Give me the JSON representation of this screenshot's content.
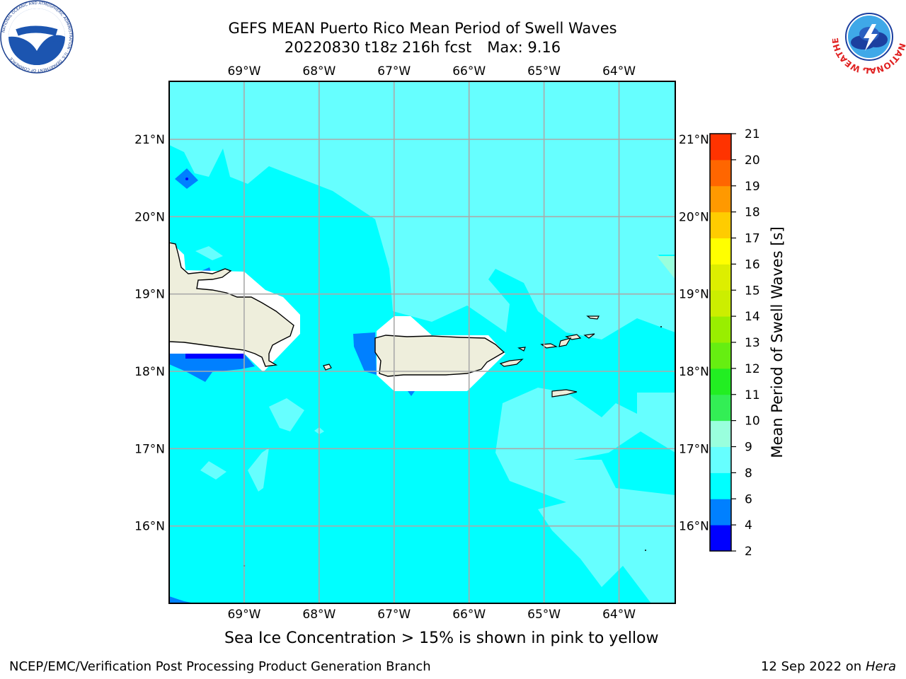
{
  "title": {
    "line1": "GEFS MEAN Puerto Rico Mean Period of Swell Waves",
    "date_run": "20220830 t18z 216h fcst",
    "max_label": "Max: 9.16"
  },
  "map": {
    "lon_labels": [
      "69°W",
      "68°W",
      "67°W",
      "66°W",
      "65°W",
      "64°W"
    ],
    "lat_labels": [
      "21°N",
      "20°N",
      "19°N",
      "18°N",
      "17°N",
      "16°N"
    ],
    "lon_values": [
      -69,
      -68,
      -67,
      -66,
      -65,
      -64
    ],
    "lat_values": [
      21,
      20,
      19,
      18,
      17,
      16
    ],
    "lon_range": [
      -70.0,
      -63.25
    ],
    "lat_range": [
      15.0,
      21.75
    ],
    "grid": true,
    "ocean_color": "#00ffff",
    "longer_period_color": "#66ffff",
    "short_period_color": "#0080ff",
    "shortest_period_color": "#0000ff",
    "land_color": "#eeeedc",
    "masked_color": "#ffffff",
    "max_value": 9.16
  },
  "colorbar": {
    "label": "Mean Period of Swell Waves [s]",
    "ticks": [
      "2",
      "4",
      "6",
      "8",
      "9",
      "10",
      "11",
      "12",
      "13",
      "14",
      "15",
      "16",
      "17",
      "18",
      "19",
      "20",
      "21"
    ],
    "colors": [
      "#0000ff",
      "#0080ff",
      "#00ffff",
      "#66ffff",
      "#99ffdd",
      "#33ee55",
      "#22ee22",
      "#66ee11",
      "#99ee00",
      "#ccee00",
      "#ddee00",
      "#ffff00",
      "#ffcc00",
      "#ff9900",
      "#ff6600",
      "#ff3300"
    ]
  },
  "subtitle": "Sea Ice Concentration > 15% is shown in pink to yellow",
  "footer": {
    "left": "NCEP/EMC/Verification Post Processing Product Generation Branch",
    "date": "12 Sep 2022 on",
    "host": "Hera"
  },
  "logos": {
    "noaa_icon": "noaa-logo-icon",
    "nws_icon": "nws-logo-icon",
    "noaa_text": "NOAA",
    "noaa_ring": "NATIONAL OCEANIC AND ATMOSPHERIC ADMINISTRATION · U.S. DEPARTMENT OF COMMERCE",
    "nws_ring": "NATIONAL WEATHER SERVICE"
  }
}
